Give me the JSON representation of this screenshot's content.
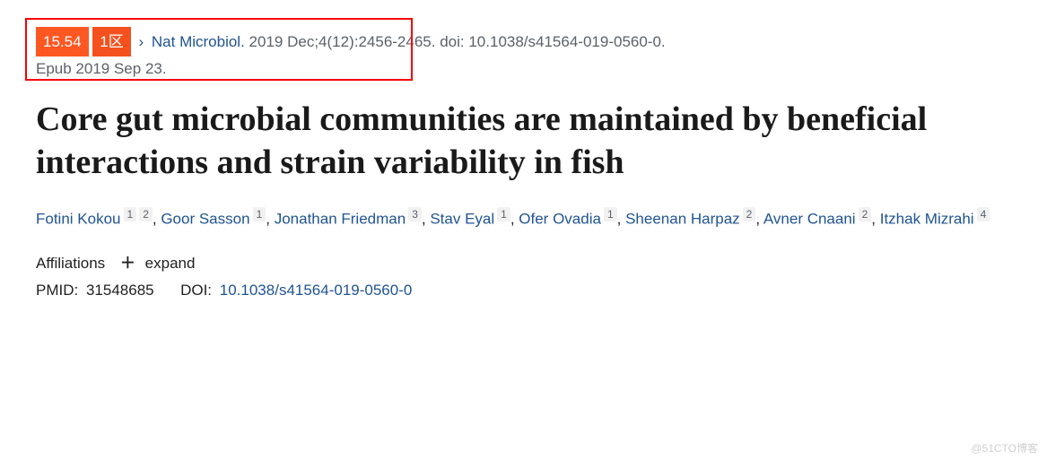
{
  "badges": {
    "impact_factor": "15.54",
    "zone": "1区"
  },
  "citation": {
    "journal": "Nat Microbiol.",
    "details": "2019 Dec;4(12):2456-2465.",
    "doi_text": "doi: 10.1038/s41564-019-0560-0.",
    "epub": "Epub 2019 Sep 23."
  },
  "title": "Core gut microbial communities are maintained by beneficial interactions and strain variability in fish",
  "authors": [
    {
      "name": "Fotini Kokou",
      "affs": [
        "1",
        "2"
      ]
    },
    {
      "name": "Goor Sasson",
      "affs": [
        "1"
      ]
    },
    {
      "name": "Jonathan Friedman",
      "affs": [
        "3"
      ]
    },
    {
      "name": "Stav Eyal",
      "affs": [
        "1"
      ]
    },
    {
      "name": "Ofer Ovadia",
      "affs": [
        "1"
      ]
    },
    {
      "name": "Sheenan Harpaz",
      "affs": [
        "2"
      ]
    },
    {
      "name": "Avner Cnaani",
      "affs": [
        "2"
      ]
    },
    {
      "name": "Itzhak Mizrahi",
      "affs": [
        "4"
      ]
    }
  ],
  "affiliations": {
    "label": "Affiliations",
    "expand": "expand"
  },
  "identifiers": {
    "pmid_label": "PMID:",
    "pmid": "31548685",
    "doi_label": "DOI:",
    "doi": "10.1038/s41564-019-0560-0"
  },
  "watermark": "@51CTO博客",
  "colors": {
    "badge_if_bg": "#ff5722",
    "badge_zone_bg": "#f4511e",
    "link": "#205493",
    "highlight_border": "#fa0000",
    "text_muted": "#5b616b",
    "aff_bg": "#f1f1f1"
  }
}
